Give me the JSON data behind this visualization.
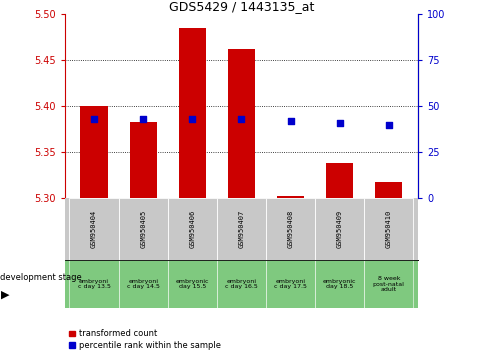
{
  "title": "GDS5429 / 1443135_at",
  "samples": [
    "GSM950404",
    "GSM950405",
    "GSM950406",
    "GSM950407",
    "GSM950408",
    "GSM950409",
    "GSM950410"
  ],
  "dev_stage_labels": [
    "embryoni\nc day 13.5",
    "embryoni\nc day 14.5",
    "embryonic\nday 15.5",
    "embryoni\nc day 16.5",
    "embryoni\nc day 17.5",
    "embryonic\nday 18.5",
    "8 week\npost-natal\nadult"
  ],
  "transformed_counts": [
    5.4,
    5.383,
    5.485,
    5.462,
    5.302,
    5.338,
    5.318
  ],
  "percentile_ranks": [
    43,
    43,
    43,
    43,
    42,
    41,
    40
  ],
  "bar_bottom": 5.3,
  "ylim_left": [
    5.3,
    5.5
  ],
  "ylim_right": [
    0,
    100
  ],
  "yticks_left": [
    5.3,
    5.35,
    5.4,
    5.45,
    5.5
  ],
  "yticks_right": [
    0,
    25,
    50,
    75,
    100
  ],
  "bar_color": "#cc0000",
  "dot_color": "#0000cc",
  "bg_color_gsm": "#c8c8c8",
  "bg_color_stage": "#7fc97f",
  "bar_width": 0.55
}
